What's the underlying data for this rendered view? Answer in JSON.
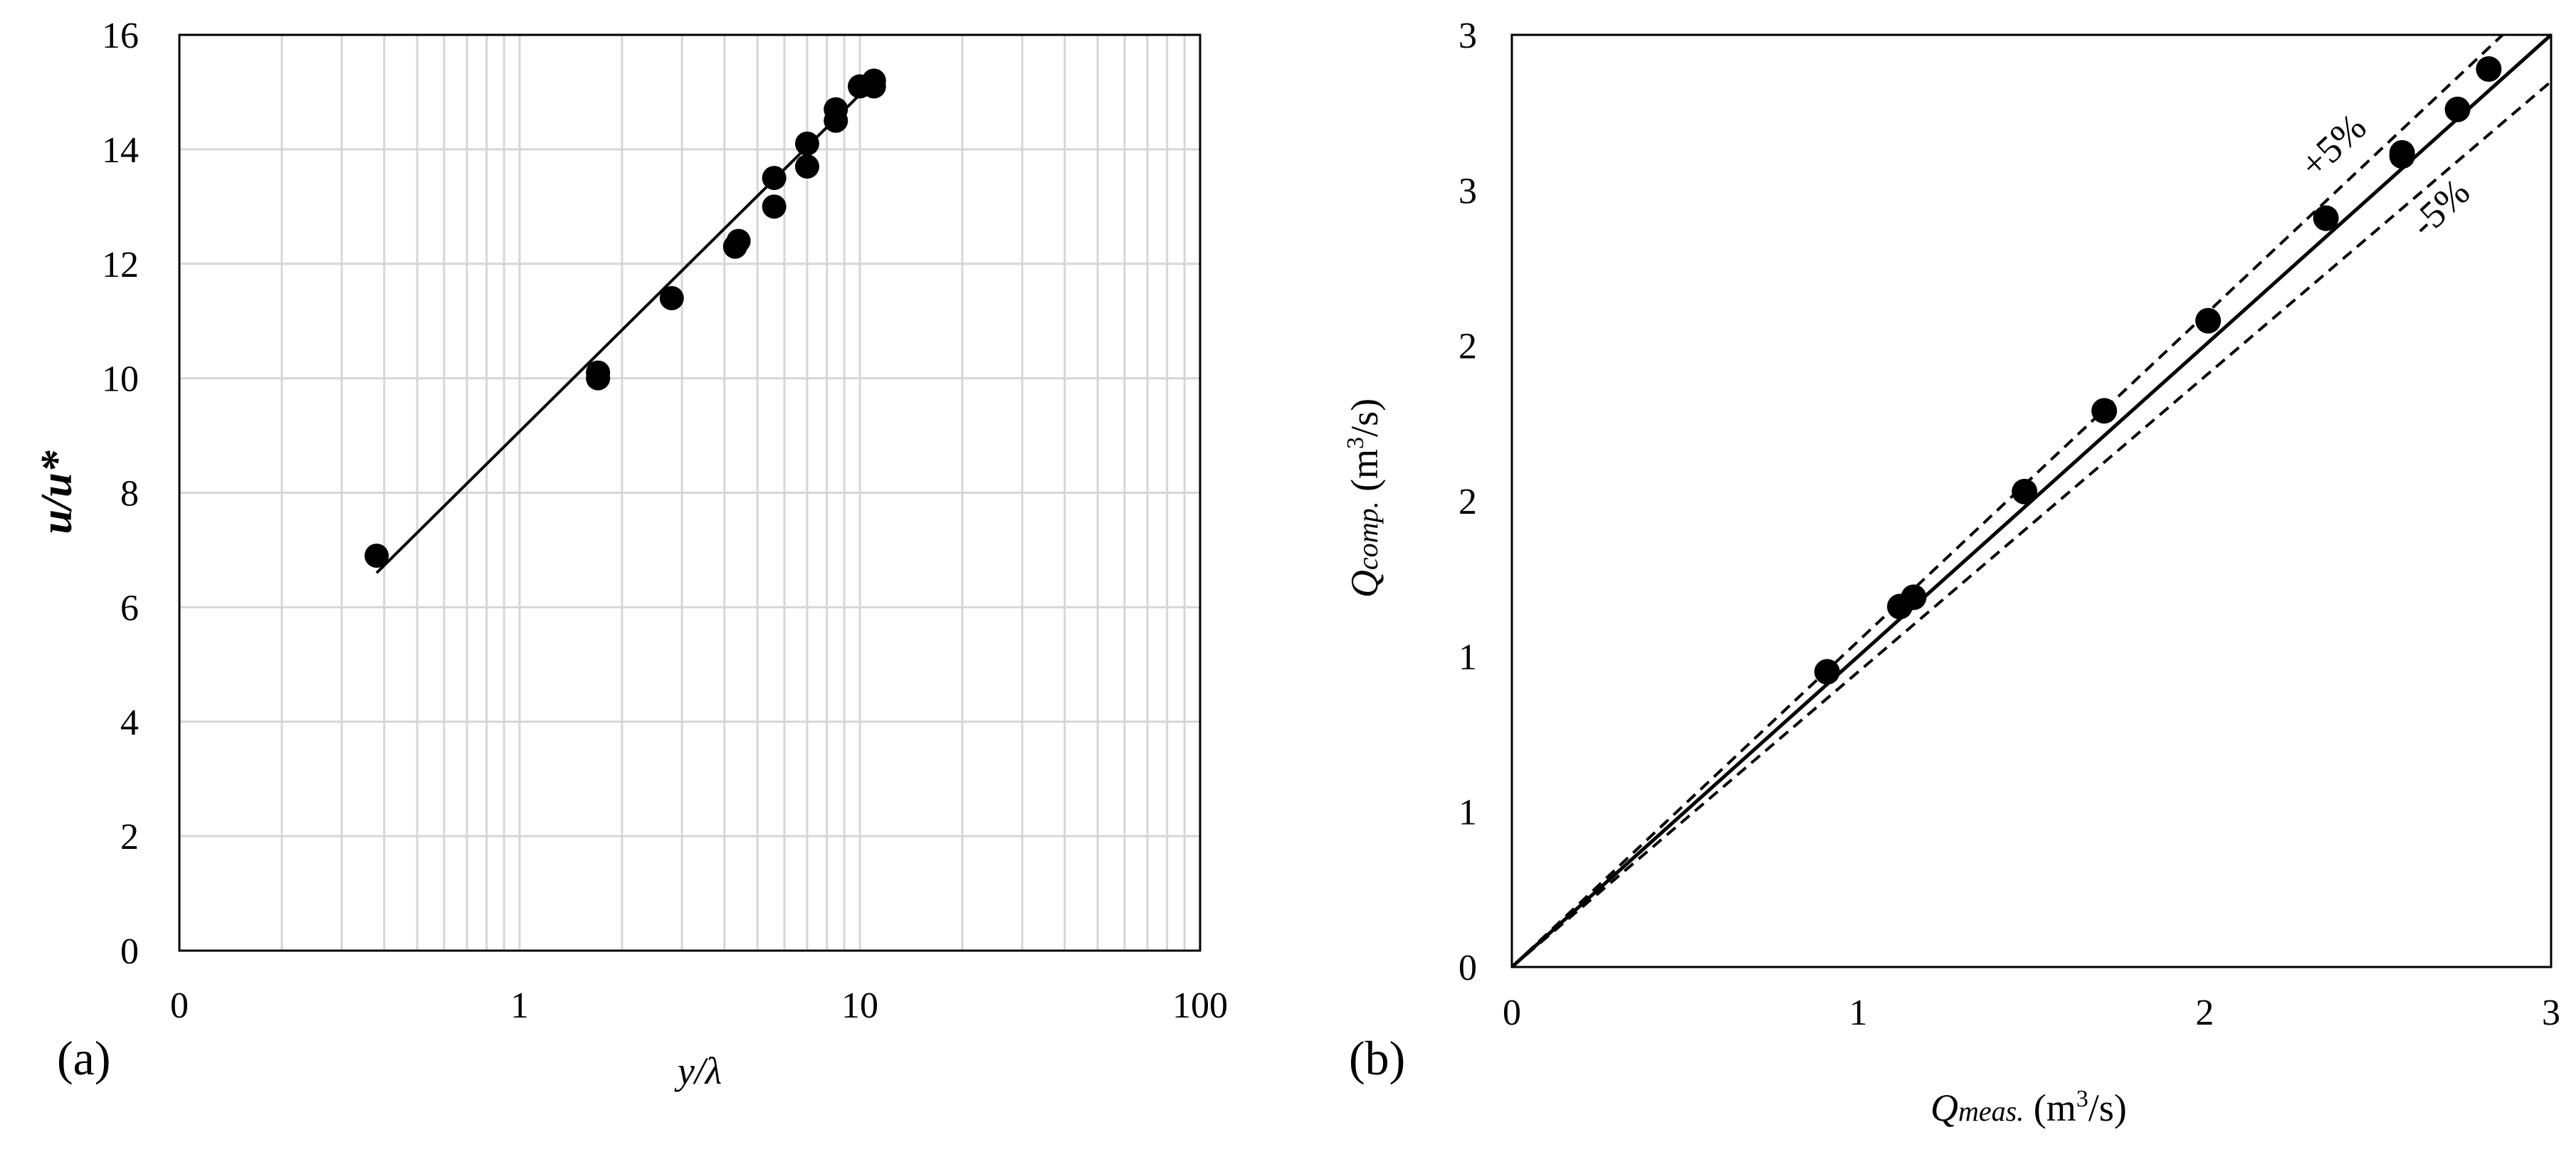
{
  "chart_data": [
    {
      "panel_label": "(a)",
      "type": "scatter",
      "xlabel": "y/λ",
      "ylabel": "u/u*",
      "x_scale": "log",
      "xlim": [
        0.1,
        100
      ],
      "ylim": [
        0,
        16
      ],
      "x_tick_labels": [
        "0",
        "1",
        "10",
        "100"
      ],
      "y_tick_labels": [
        "0",
        "2",
        "4",
        "6",
        "8",
        "10",
        "12",
        "14",
        "16"
      ],
      "grid": true,
      "series": [
        {
          "kind": "points",
          "x": [
            0.38,
            1.7,
            1.7,
            2.8,
            4.3,
            4.4,
            5.6,
            5.6,
            7.0,
            7.0,
            8.5,
            8.5,
            10.0,
            11.0,
            11.0
          ],
          "y": [
            6.9,
            10.1,
            10.0,
            11.4,
            12.3,
            12.4,
            13.0,
            13.5,
            13.7,
            14.1,
            14.5,
            14.7,
            15.1,
            15.1,
            15.2
          ]
        },
        {
          "kind": "line",
          "x": [
            0.38,
            11.0
          ],
          "y": [
            6.6,
            15.2
          ]
        }
      ]
    },
    {
      "panel_label": "(b)",
      "type": "scatter",
      "xlabel": "Qmeas. (m3/s)",
      "ylabel": "Qcomp. (m3/s)",
      "xlim": [
        0,
        3
      ],
      "ylim": [
        0,
        3
      ],
      "x_tick_labels": [
        "0",
        "1",
        "1",
        "2",
        "2",
        "3",
        "3"
      ],
      "y_tick_labels": [
        "0",
        "1",
        "1",
        "2",
        "2",
        "3",
        "3"
      ],
      "grid": false,
      "annotations": [
        "+5%",
        "-5%"
      ],
      "series": [
        {
          "kind": "points",
          "x": [
            0.91,
            1.12,
            1.16,
            1.48,
            1.71,
            2.01,
            2.35,
            2.57,
            2.57,
            2.73,
            2.82
          ],
          "y": [
            0.95,
            1.16,
            1.19,
            1.53,
            1.79,
            2.08,
            2.41,
            2.62,
            2.61,
            2.76,
            2.89
          ]
        },
        {
          "kind": "line",
          "style": "solid",
          "x": [
            0,
            3
          ],
          "y": [
            0,
            3
          ]
        },
        {
          "kind": "line",
          "style": "dashed",
          "x": [
            0,
            2.86
          ],
          "y": [
            0,
            3
          ]
        },
        {
          "kind": "line",
          "style": "dashed",
          "x": [
            0,
            3
          ],
          "y": [
            0,
            2.85
          ]
        }
      ]
    }
  ]
}
